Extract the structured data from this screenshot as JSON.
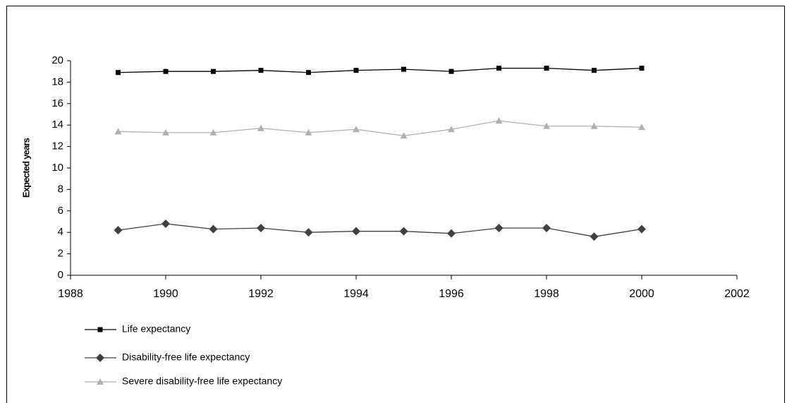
{
  "chart_data": {
    "type": "line",
    "y_label": "Expected years",
    "x": [
      1989,
      1990,
      1991,
      1992,
      1993,
      1994,
      1995,
      1996,
      1997,
      1998,
      1999,
      2000
    ],
    "series": [
      {
        "name": "Life expectancy",
        "color": "#000000",
        "marker": "square",
        "values": [
          18.9,
          19.0,
          19.0,
          19.1,
          18.9,
          19.1,
          19.2,
          19.0,
          19.3,
          19.3,
          19.1,
          19.3
        ]
      },
      {
        "name": "Disability-free life expectancy",
        "color": "#404040",
        "marker": "diamond",
        "values": [
          4.2,
          4.8,
          4.3,
          4.4,
          4.0,
          4.1,
          4.1,
          3.9,
          4.4,
          4.4,
          3.6,
          4.3
        ]
      },
      {
        "name": "Severe disability-free life expectancy",
        "color": "#b0b0b0",
        "marker": "triangle",
        "values": [
          13.4,
          13.3,
          13.3,
          13.7,
          13.3,
          13.6,
          13.0,
          13.6,
          14.4,
          13.9,
          13.9,
          13.8
        ]
      }
    ],
    "xlim": [
      1988,
      2002
    ],
    "xticks": [
      1988,
      1990,
      1992,
      1994,
      1996,
      1998,
      2000,
      2002
    ],
    "ylim": [
      0,
      20
    ],
    "yticks": [
      0,
      2,
      4,
      6,
      8,
      10,
      12,
      14,
      16,
      18,
      20
    ],
    "grid": false
  }
}
